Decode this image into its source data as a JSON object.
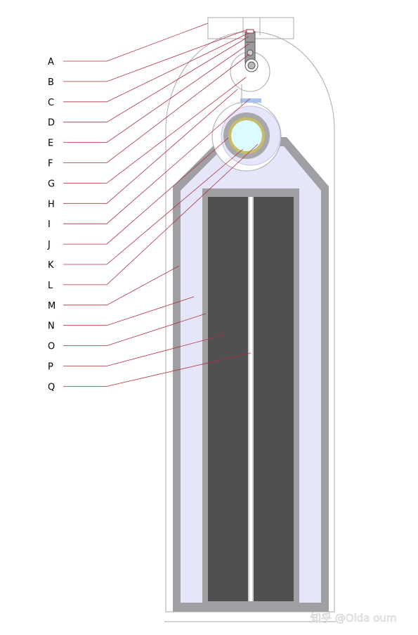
{
  "labels": [
    "A",
    "B",
    "C",
    "D",
    "E",
    "F",
    "G",
    "H",
    "I",
    "J",
    "K",
    "L",
    "M",
    "N",
    "O",
    "P",
    "Q"
  ],
  "watermark": "知乎 @Oida oum",
  "colors": {
    "leader_line": "#b03040",
    "outline": "#aaaaaa",
    "lavender_fill": "#e6e6fa",
    "gray_layer": "#a0a0a4",
    "dark_panel": "#505050",
    "slot": "#ffffff",
    "rod": "#9a9a9e",
    "hub_ring": "#a8a8ab",
    "core_ring": "#c8bc6a",
    "core": "#dcfbff",
    "blue_marker": "#a6c4ec",
    "label_text": "#000000",
    "watermark": "#c8c8c8"
  }
}
